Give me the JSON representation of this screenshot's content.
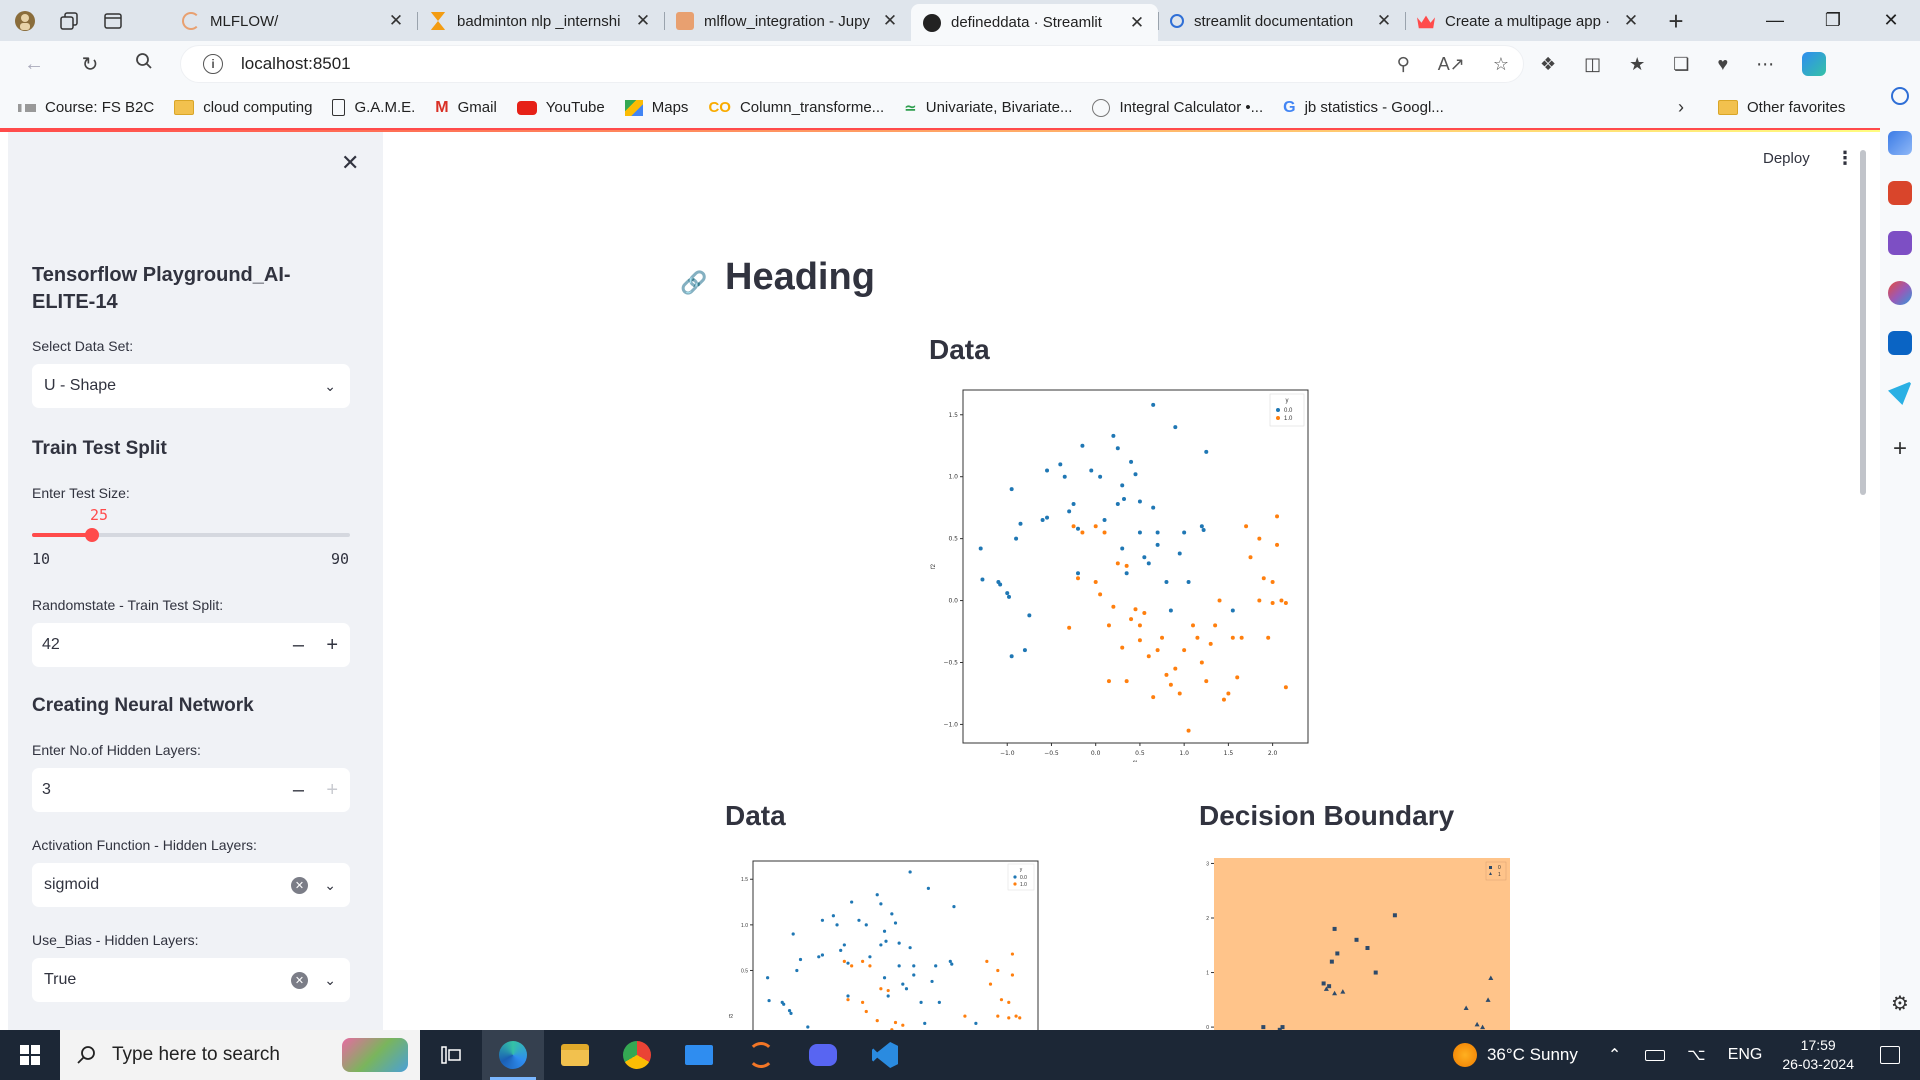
{
  "browser": {
    "tabs": [
      {
        "title": "MLFLOW/",
        "color": "#e8a070",
        "active": false
      },
      {
        "title": "badminton nlp _internshi",
        "color": "#f39c12",
        "active": false
      },
      {
        "title": "mlflow_integration - Jupy",
        "color": "#e8a070",
        "active": false
      },
      {
        "title": "defineddata · Streamlit",
        "color": "#222222",
        "active": true
      },
      {
        "title": "streamlit documentation",
        "color": "#2f6fd6",
        "active": false
      },
      {
        "title": "Create a multipage app ·",
        "color": "#ff4b4b",
        "active": false
      }
    ],
    "url": "localhost:8501",
    "bookmarks": [
      {
        "label": "Course: FS B2C",
        "icon": "course-icon"
      },
      {
        "label": "cloud computing",
        "icon": "folder-icon"
      },
      {
        "label": "G.A.M.E.",
        "icon": "document-icon"
      },
      {
        "label": "Gmail",
        "icon": "gmail-icon"
      },
      {
        "label": "YouTube",
        "icon": "youtube-icon"
      },
      {
        "label": "Maps",
        "icon": "maps-icon"
      },
      {
        "label": "Column_transforme...",
        "icon": "colab-icon"
      },
      {
        "label": "Univariate, Bivariate...",
        "icon": "analytics-icon"
      },
      {
        "label": "Integral Calculator •...",
        "icon": "calculator-icon"
      },
      {
        "label": "jb statistics - Googl...",
        "icon": "google-icon"
      }
    ],
    "other_favorites": "Other favorites"
  },
  "sidebar": {
    "title": "Tensorflow Playground_AI-ELITE-14",
    "dataset_label": "Select Data Set:",
    "dataset_value": "U - Shape",
    "split_heading": "Train Test Split",
    "test_size_label": "Enter Test Size:",
    "test_size_value": "25",
    "test_size_min": "10",
    "test_size_max": "90",
    "test_size_fraction": 0.1875,
    "random_state_label": "Randomstate - Train Test Split:",
    "random_state_value": "42",
    "nn_heading": "Creating Neural Network",
    "hidden_layers_label": "Enter No.of Hidden Layers:",
    "hidden_layers_value": "3",
    "activation_label": "Activation Function - Hidden Layers:",
    "activation_value": "sigmoid",
    "use_bias_label": "Use_Bias - Hidden Layers:",
    "use_bias_value": "True"
  },
  "header": {
    "deploy_label": "Deploy"
  },
  "main": {
    "heading": "Heading",
    "data_heading": "Data",
    "data_heading_2": "Data",
    "decision_heading": "Decision Boundary"
  },
  "taskbar": {
    "search_placeholder": "Type here to search",
    "weather": "36°C  Sunny",
    "lang": "ENG",
    "time": "17:59",
    "date": "26-03-2024"
  },
  "chart_data": [
    {
      "type": "scatter",
      "xlabel": "f1",
      "ylabel": "f2",
      "xlim": [
        -1.5,
        2.4
      ],
      "ylim": [
        -1.15,
        1.7
      ],
      "xticks": [
        -1.0,
        -0.5,
        0.0,
        0.5,
        1.0,
        1.5,
        2.0
      ],
      "yticks": [
        -1.0,
        -0.5,
        0.0,
        0.5,
        1.0,
        1.5
      ],
      "legend_title": "y",
      "series": [
        {
          "name": "0.0",
          "color": "#1f77b4",
          "points": [
            [
              -1.3,
              0.42
            ],
            [
              -1.28,
              0.17
            ],
            [
              -1.1,
              0.15
            ],
            [
              -1.08,
              0.13
            ],
            [
              -1.0,
              0.06
            ],
            [
              -0.98,
              0.03
            ],
            [
              -0.95,
              0.9
            ],
            [
              -0.9,
              0.5
            ],
            [
              -0.85,
              0.62
            ],
            [
              -0.8,
              -0.4
            ],
            [
              -0.75,
              -0.12
            ],
            [
              -0.6,
              0.65
            ],
            [
              -0.55,
              0.67
            ],
            [
              -0.55,
              1.05
            ],
            [
              -0.4,
              1.1
            ],
            [
              -0.35,
              1.0
            ],
            [
              -0.3,
              0.72
            ],
            [
              -0.25,
              0.78
            ],
            [
              -0.2,
              0.58
            ],
            [
              -0.2,
              0.22
            ],
            [
              -0.15,
              1.25
            ],
            [
              -0.05,
              1.05
            ],
            [
              0.05,
              1.0
            ],
            [
              0.1,
              0.65
            ],
            [
              0.2,
              1.33
            ],
            [
              0.25,
              1.23
            ],
            [
              0.25,
              0.78
            ],
            [
              0.3,
              0.42
            ],
            [
              0.3,
              0.93
            ],
            [
              0.32,
              0.82
            ],
            [
              0.35,
              0.22
            ],
            [
              0.4,
              1.12
            ],
            [
              0.45,
              1.02
            ],
            [
              0.5,
              0.55
            ],
            [
              0.5,
              0.8
            ],
            [
              0.55,
              0.35
            ],
            [
              0.6,
              0.3
            ],
            [
              0.65,
              1.58
            ],
            [
              0.65,
              0.75
            ],
            [
              0.7,
              0.45
            ],
            [
              0.7,
              0.55
            ],
            [
              0.8,
              0.15
            ],
            [
              0.85,
              -0.08
            ],
            [
              0.9,
              1.4
            ],
            [
              0.95,
              0.38
            ],
            [
              1.0,
              0.55
            ],
            [
              1.05,
              0.15
            ],
            [
              1.2,
              0.6
            ],
            [
              1.22,
              0.57
            ],
            [
              1.25,
              1.2
            ],
            [
              1.55,
              -0.08
            ],
            [
              -0.95,
              -0.45
            ]
          ]
        },
        {
          "name": "1.0",
          "color": "#ff7f0e",
          "points": [
            [
              -0.3,
              -0.22
            ],
            [
              -0.25,
              0.6
            ],
            [
              -0.2,
              0.18
            ],
            [
              -0.15,
              0.55
            ],
            [
              0.0,
              0.6
            ],
            [
              0.0,
              0.15
            ],
            [
              0.05,
              0.05
            ],
            [
              0.1,
              0.55
            ],
            [
              0.15,
              -0.2
            ],
            [
              0.15,
              -0.65
            ],
            [
              0.2,
              -0.05
            ],
            [
              0.25,
              0.3
            ],
            [
              0.3,
              -0.38
            ],
            [
              0.35,
              0.28
            ],
            [
              0.35,
              -0.65
            ],
            [
              0.4,
              -0.15
            ],
            [
              0.45,
              -0.07
            ],
            [
              0.5,
              -0.2
            ],
            [
              0.5,
              -0.32
            ],
            [
              0.55,
              -0.1
            ],
            [
              0.6,
              -0.45
            ],
            [
              0.65,
              -0.78
            ],
            [
              0.7,
              -0.4
            ],
            [
              0.75,
              -0.3
            ],
            [
              0.8,
              -0.6
            ],
            [
              0.85,
              -0.68
            ],
            [
              0.9,
              -0.55
            ],
            [
              0.95,
              -0.75
            ],
            [
              1.0,
              -0.4
            ],
            [
              1.05,
              -1.05
            ],
            [
              1.1,
              -0.2
            ],
            [
              1.15,
              -0.3
            ],
            [
              1.2,
              -0.5
            ],
            [
              1.25,
              -0.65
            ],
            [
              1.3,
              -0.35
            ],
            [
              1.35,
              -0.2
            ],
            [
              1.4,
              0.0
            ],
            [
              1.45,
              -0.8
            ],
            [
              1.5,
              -0.75
            ],
            [
              1.55,
              -0.3
            ],
            [
              1.6,
              -0.62
            ],
            [
              1.65,
              -0.3
            ],
            [
              1.7,
              0.6
            ],
            [
              1.75,
              0.35
            ],
            [
              1.85,
              0.0
            ],
            [
              1.9,
              0.18
            ],
            [
              1.95,
              -0.3
            ],
            [
              2.0,
              0.15
            ],
            [
              2.05,
              0.68
            ],
            [
              2.05,
              0.45
            ],
            [
              2.1,
              0.0
            ],
            [
              2.15,
              -0.02
            ],
            [
              2.15,
              -0.7
            ],
            [
              2.0,
              -0.02
            ],
            [
              1.85,
              0.5
            ]
          ]
        }
      ]
    },
    {
      "type": "scatter",
      "ylabel": "f2",
      "ylim": [
        -1.15,
        1.7
      ],
      "yticks": [
        0.5,
        1.0,
        1.5
      ],
      "legend_title": "y",
      "series": [
        {
          "name": "0.0",
          "color": "#1f77b4"
        },
        {
          "name": "1.0",
          "color": "#ff7f0e"
        }
      ]
    },
    {
      "type": "scatter",
      "title": "",
      "yticks": [
        0,
        1,
        2,
        3
      ],
      "ylim": [
        -0.2,
        3.1
      ],
      "background": "#ffc48a",
      "legend": [
        "0",
        "1"
      ],
      "series": [
        {
          "name": "0",
          "marker": "square",
          "color": "#2d4a6a",
          "points": [
            [
              0.5,
              0.0
            ],
            [
              0.8,
              -0.05
            ],
            [
              0.85,
              0.0
            ],
            [
              1.6,
              0.8
            ],
            [
              1.7,
              0.75
            ],
            [
              1.75,
              1.2
            ],
            [
              1.8,
              1.8
            ],
            [
              1.85,
              1.35
            ],
            [
              2.2,
              1.6
            ],
            [
              2.4,
              1.45
            ],
            [
              2.55,
              1.0
            ],
            [
              2.9,
              2.05
            ]
          ]
        },
        {
          "name": "1",
          "marker": "triangle",
          "color": "#2d4a6a",
          "points": [
            [
              1.65,
              0.7
            ],
            [
              1.8,
              0.62
            ],
            [
              1.95,
              0.65
            ],
            [
              4.2,
              0.35
            ],
            [
              4.4,
              0.05
            ],
            [
              4.5,
              0.0
            ],
            [
              4.6,
              0.5
            ],
            [
              4.65,
              0.9
            ]
          ]
        }
      ]
    }
  ]
}
